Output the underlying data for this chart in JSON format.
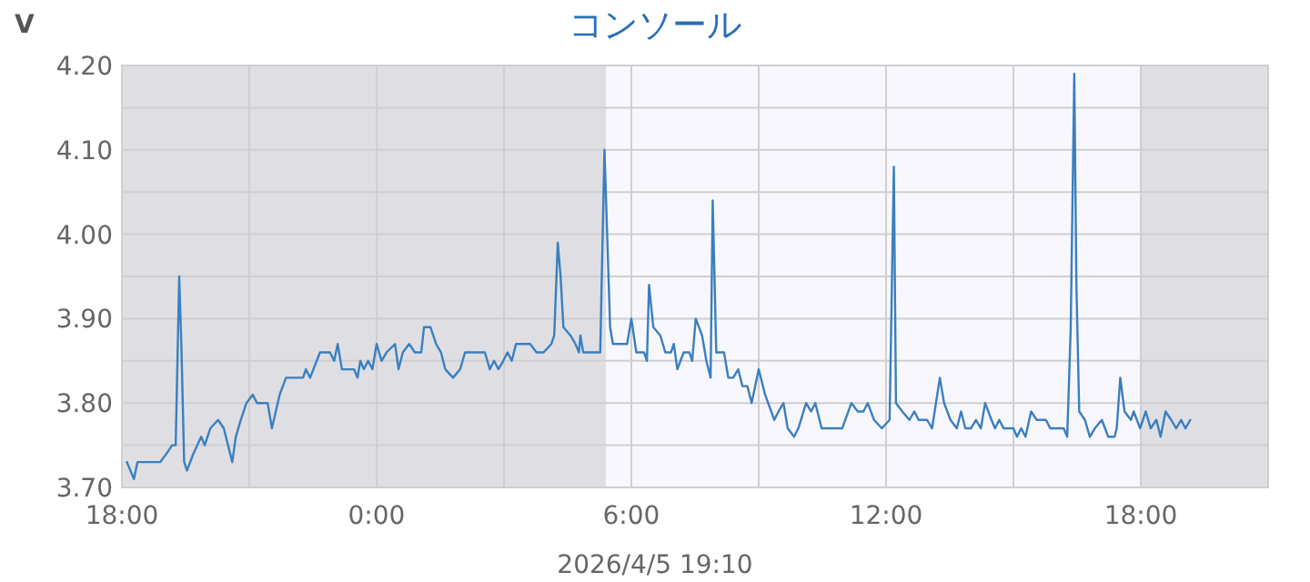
{
  "chart_data": {
    "type": "line",
    "title": "コンソール",
    "ylabel": "V",
    "annotations": [
      "2026/4/5 19:10"
    ],
    "xlim": [
      "2026-04-04T18:00",
      "2026-04-05T21:00"
    ],
    "ylim": [
      3.7,
      4.2
    ],
    "xticks": [
      {
        "value": "2026-04-04T18:00",
        "label": "18:00"
      },
      {
        "value": "2026-04-04T21:00",
        "label": null
      },
      {
        "value": "2026-04-05T00:00",
        "label": "0:00"
      },
      {
        "value": "2026-04-05T03:00",
        "label": null
      },
      {
        "value": "2026-04-05T06:00",
        "label": "6:00"
      },
      {
        "value": "2026-04-05T09:00",
        "label": null
      },
      {
        "value": "2026-04-05T12:00",
        "label": "12:00"
      },
      {
        "value": "2026-04-05T15:00",
        "label": null
      },
      {
        "value": "2026-04-05T18:00",
        "label": "18:00"
      }
    ],
    "yticks": [
      {
        "value": 3.7,
        "label": "3.70"
      },
      {
        "value": 3.75,
        "label": null
      },
      {
        "value": 3.8,
        "label": "3.80"
      },
      {
        "value": 3.85,
        "label": null
      },
      {
        "value": 3.9,
        "label": "3.90"
      },
      {
        "value": 3.95,
        "label": null
      },
      {
        "value": 4.0,
        "label": "4.00"
      },
      {
        "value": 4.05,
        "label": null
      },
      {
        "value": 4.1,
        "label": "4.10"
      },
      {
        "value": 4.15,
        "label": null
      },
      {
        "value": 4.2,
        "label": "4.20"
      }
    ],
    "grid": true,
    "line_style": "solid",
    "bands": [
      {
        "axis": "x",
        "from": "2026-04-04T18:00",
        "to": "2026-04-05T05:24",
        "label": null,
        "color": "#dfdfe3"
      },
      {
        "axis": "x",
        "from": "2026-04-05T05:24",
        "to": "2026-04-05T18:00",
        "label": null,
        "color": "#f9f7fe"
      },
      {
        "axis": "x",
        "from": "2026-04-05T18:00",
        "to": "2026-04-05T21:00",
        "label": null,
        "color": "#dfdfe3"
      }
    ],
    "series": [
      {
        "color": "#3a7fc0",
        "x": [
          "2026-04-04T18:07",
          "2026-04-04T18:17",
          "2026-04-04T18:22",
          "2026-04-04T18:54",
          "2026-04-04T19:03",
          "2026-04-04T19:11",
          "2026-04-04T19:16",
          "2026-04-04T19:21",
          "2026-04-04T19:24",
          "2026-04-04T19:28",
          "2026-04-04T19:32",
          "2026-04-04T19:41",
          "2026-04-04T19:52",
          "2026-04-04T19:57",
          "2026-04-04T20:05",
          "2026-04-04T20:16",
          "2026-04-04T20:24",
          "2026-04-04T20:36",
          "2026-04-04T20:41",
          "2026-04-04T20:48",
          "2026-04-04T20:56",
          "2026-04-04T21:05",
          "2026-04-04T21:11",
          "2026-04-04T21:26",
          "2026-04-04T21:32",
          "2026-04-04T21:43",
          "2026-04-04T21:52",
          "2026-04-04T22:16",
          "2026-04-04T22:20",
          "2026-04-04T22:26",
          "2026-04-04T22:40",
          "2026-04-04T22:54",
          "2026-04-04T23:00",
          "2026-04-04T23:05",
          "2026-04-04T23:11",
          "2026-04-04T23:28",
          "2026-04-04T23:33",
          "2026-04-04T23:37",
          "2026-04-04T23:42",
          "2026-04-04T23:48",
          "2026-04-04T23:54",
          "2026-04-05T00:00",
          "2026-04-05T00:07",
          "2026-04-05T00:14",
          "2026-04-05T00:26",
          "2026-04-05T00:31",
          "2026-04-05T00:37",
          "2026-04-05T00:46",
          "2026-04-05T00:54",
          "2026-04-05T01:03",
          "2026-04-05T01:07",
          "2026-04-05T01:16",
          "2026-04-05T01:24",
          "2026-04-05T01:31",
          "2026-04-05T01:37",
          "2026-04-05T01:48",
          "2026-04-05T01:58",
          "2026-04-05T02:05",
          "2026-04-05T02:33",
          "2026-04-05T02:40",
          "2026-04-05T02:46",
          "2026-04-05T02:52",
          "2026-04-05T02:59",
          "2026-04-05T03:05",
          "2026-04-05T03:11",
          "2026-04-05T03:17",
          "2026-04-05T03:37",
          "2026-04-05T03:46",
          "2026-04-05T03:56",
          "2026-04-05T04:07",
          "2026-04-05T04:11",
          "2026-04-05T04:16",
          "2026-04-05T04:20",
          "2026-04-05T04:24",
          "2026-04-05T04:34",
          "2026-04-05T04:41",
          "2026-04-05T04:46",
          "2026-04-05T04:48",
          "2026-04-05T04:52",
          "2026-04-05T05:16",
          "2026-04-05T05:22",
          "2026-04-05T05:30",
          "2026-04-05T05:34",
          "2026-04-05T05:54",
          "2026-04-05T06:00",
          "2026-04-05T06:07",
          "2026-04-05T06:18",
          "2026-04-05T06:22",
          "2026-04-05T06:25",
          "2026-04-05T06:31",
          "2026-04-05T06:41",
          "2026-04-05T06:48",
          "2026-04-05T06:56",
          "2026-04-05T07:00",
          "2026-04-05T07:05",
          "2026-04-05T07:14",
          "2026-04-05T07:22",
          "2026-04-05T07:26",
          "2026-04-05T07:31",
          "2026-04-05T07:40",
          "2026-04-05T07:46",
          "2026-04-05T07:52",
          "2026-04-05T07:55",
          "2026-04-05T08:00",
          "2026-04-05T08:11",
          "2026-04-05T08:17",
          "2026-04-05T08:24",
          "2026-04-05T08:31",
          "2026-04-05T08:37",
          "2026-04-05T08:44",
          "2026-04-05T08:50",
          "2026-04-05T09:00",
          "2026-04-05T09:09",
          "2026-04-05T09:22",
          "2026-04-05T09:28",
          "2026-04-05T09:35",
          "2026-04-05T09:41",
          "2026-04-05T09:50",
          "2026-04-05T09:56",
          "2026-04-05T10:07",
          "2026-04-05T10:14",
          "2026-04-05T10:20",
          "2026-04-05T10:29",
          "2026-04-05T10:58",
          "2026-04-05T11:11",
          "2026-04-05T11:20",
          "2026-04-05T11:28",
          "2026-04-05T11:34",
          "2026-04-05T11:43",
          "2026-04-05T11:54",
          "2026-04-05T12:05",
          "2026-04-05T12:11",
          "2026-04-05T12:14",
          "2026-04-05T12:23",
          "2026-04-05T12:33",
          "2026-04-05T12:40",
          "2026-04-05T12:46",
          "2026-04-05T12:58",
          "2026-04-05T13:05",
          "2026-04-05T13:16",
          "2026-04-05T13:22",
          "2026-04-05T13:31",
          "2026-04-05T13:40",
          "2026-04-05T13:46",
          "2026-04-05T13:52",
          "2026-04-05T14:00",
          "2026-04-05T14:07",
          "2026-04-05T14:14",
          "2026-04-05T14:20",
          "2026-04-05T14:29",
          "2026-04-05T14:34",
          "2026-04-05T14:40",
          "2026-04-05T14:46",
          "2026-04-05T15:00",
          "2026-04-05T15:05",
          "2026-04-05T15:11",
          "2026-04-05T15:17",
          "2026-04-05T15:25",
          "2026-04-05T15:33",
          "2026-04-05T15:46",
          "2026-04-05T15:52",
          "2026-04-05T16:11",
          "2026-04-05T16:16",
          "2026-04-05T16:21",
          "2026-04-05T16:26",
          "2026-04-05T16:29",
          "2026-04-05T16:33",
          "2026-04-05T16:41",
          "2026-04-05T16:48",
          "2026-04-05T16:55",
          "2026-04-05T17:05",
          "2026-04-05T17:14",
          "2026-04-05T17:23",
          "2026-04-05T17:26",
          "2026-04-05T17:31",
          "2026-04-05T17:37",
          "2026-04-05T17:46",
          "2026-04-05T17:50",
          "2026-04-05T17:59",
          "2026-04-05T18:07",
          "2026-04-05T18:14",
          "2026-04-05T18:22",
          "2026-04-05T18:28",
          "2026-04-05T18:35",
          "2026-04-05T18:43",
          "2026-04-05T18:50",
          "2026-04-05T18:57",
          "2026-04-05T19:03",
          "2026-04-05T19:10"
        ],
        "values": [
          3.73,
          3.71,
          3.73,
          3.73,
          3.74,
          3.75,
          3.75,
          3.95,
          3.87,
          3.73,
          3.72,
          3.74,
          3.76,
          3.75,
          3.77,
          3.78,
          3.77,
          3.73,
          3.76,
          3.78,
          3.8,
          3.81,
          3.8,
          3.8,
          3.77,
          3.81,
          3.83,
          3.83,
          3.84,
          3.83,
          3.86,
          3.86,
          3.85,
          3.87,
          3.84,
          3.84,
          3.83,
          3.85,
          3.84,
          3.85,
          3.84,
          3.87,
          3.85,
          3.86,
          3.87,
          3.84,
          3.86,
          3.87,
          3.86,
          3.86,
          3.89,
          3.89,
          3.87,
          3.86,
          3.84,
          3.83,
          3.84,
          3.86,
          3.86,
          3.84,
          3.85,
          3.84,
          3.85,
          3.86,
          3.85,
          3.87,
          3.87,
          3.86,
          3.86,
          3.87,
          3.88,
          3.99,
          3.95,
          3.89,
          3.88,
          3.87,
          3.86,
          3.88,
          3.86,
          3.86,
          4.1,
          3.89,
          3.87,
          3.87,
          3.9,
          3.86,
          3.86,
          3.85,
          3.94,
          3.89,
          3.88,
          3.86,
          3.86,
          3.87,
          3.84,
          3.86,
          3.86,
          3.85,
          3.9,
          3.88,
          3.85,
          3.83,
          4.04,
          3.86,
          3.86,
          3.83,
          3.83,
          3.84,
          3.82,
          3.82,
          3.8,
          3.84,
          3.81,
          3.78,
          3.79,
          3.8,
          3.77,
          3.76,
          3.77,
          3.8,
          3.79,
          3.8,
          3.77,
          3.77,
          3.8,
          3.79,
          3.79,
          3.8,
          3.78,
          3.77,
          3.78,
          4.08,
          3.8,
          3.79,
          3.78,
          3.79,
          3.78,
          3.78,
          3.77,
          3.83,
          3.8,
          3.78,
          3.77,
          3.79,
          3.77,
          3.77,
          3.78,
          3.77,
          3.8,
          3.78,
          3.77,
          3.78,
          3.77,
          3.77,
          3.76,
          3.77,
          3.76,
          3.79,
          3.78,
          3.78,
          3.77,
          3.77,
          3.76,
          3.89,
          4.19,
          3.94,
          3.79,
          3.78,
          3.76,
          3.77,
          3.78,
          3.76,
          3.76,
          3.77,
          3.83,
          3.79,
          3.78,
          3.79,
          3.77,
          3.79,
          3.77,
          3.78,
          3.76,
          3.79,
          3.78,
          3.77,
          3.78,
          3.77,
          3.78
        ]
      }
    ]
  }
}
